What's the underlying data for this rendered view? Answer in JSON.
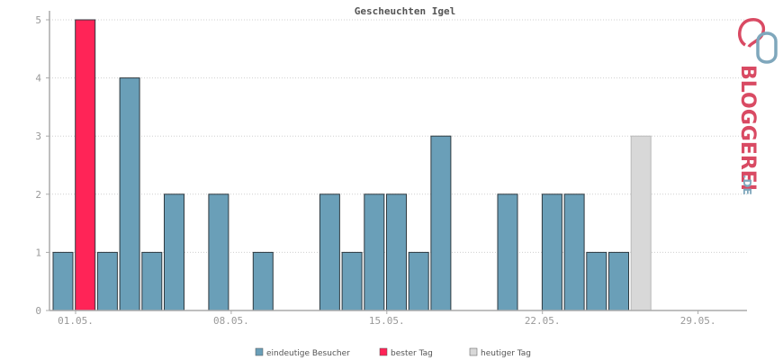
{
  "chart_data": {
    "type": "bar",
    "title": "Gescheuchten Igel",
    "xlabel": "",
    "ylabel": "",
    "ylim": [
      0,
      5
    ],
    "yticks": [
      "0",
      "1",
      "2",
      "3",
      "4",
      "5"
    ],
    "xtick_labels": [
      "01.05.",
      "08.05.",
      "15.05.",
      "22.05.",
      "29.05."
    ],
    "categories": [
      "01.05.",
      "02.05.",
      "03.05.",
      "04.05.",
      "05.05.",
      "06.05.",
      "07.05.",
      "08.05.",
      "09.05.",
      "10.05.",
      "11.05.",
      "12.05.",
      "13.05.",
      "14.05.",
      "15.05.",
      "16.05.",
      "17.05.",
      "18.05.",
      "19.05.",
      "20.05.",
      "21.05.",
      "22.05.",
      "23.05.",
      "24.05.",
      "25.05.",
      "26.05.",
      "27.05.",
      "28.05.",
      "29.05.",
      "30.05.",
      "31.05."
    ],
    "values": [
      1,
      5,
      1,
      4,
      1,
      2,
      0,
      2,
      0,
      1,
      0,
      0,
      2,
      1,
      2,
      2,
      1,
      3,
      0,
      0,
      2,
      0,
      2,
      2,
      1,
      1,
      3,
      0,
      0,
      0,
      0
    ],
    "bar_kind": [
      "normal",
      "best",
      "normal",
      "normal",
      "normal",
      "normal",
      "normal",
      "normal",
      "normal",
      "normal",
      "normal",
      "normal",
      "normal",
      "normal",
      "normal",
      "normal",
      "normal",
      "normal",
      "normal",
      "normal",
      "normal",
      "normal",
      "normal",
      "normal",
      "normal",
      "normal",
      "today",
      "normal",
      "normal",
      "normal",
      "normal"
    ],
    "grid": true,
    "legend_position": "bottom",
    "legend": [
      {
        "label": "eindeutige Besucher",
        "color": "#6a9fb8"
      },
      {
        "label": "bester Tag",
        "color": "#ff2457"
      },
      {
        "label": "heutiger Tag",
        "color": "#d8d8d8"
      }
    ],
    "colors": {
      "normal": "#6a9fb8",
      "best": "#ff2457",
      "today": "#d8d8d8"
    }
  },
  "logo": {
    "text": "BLOGGEREI",
    "suffix": ".DE",
    "icon": "bloggerei-logo-icon"
  }
}
